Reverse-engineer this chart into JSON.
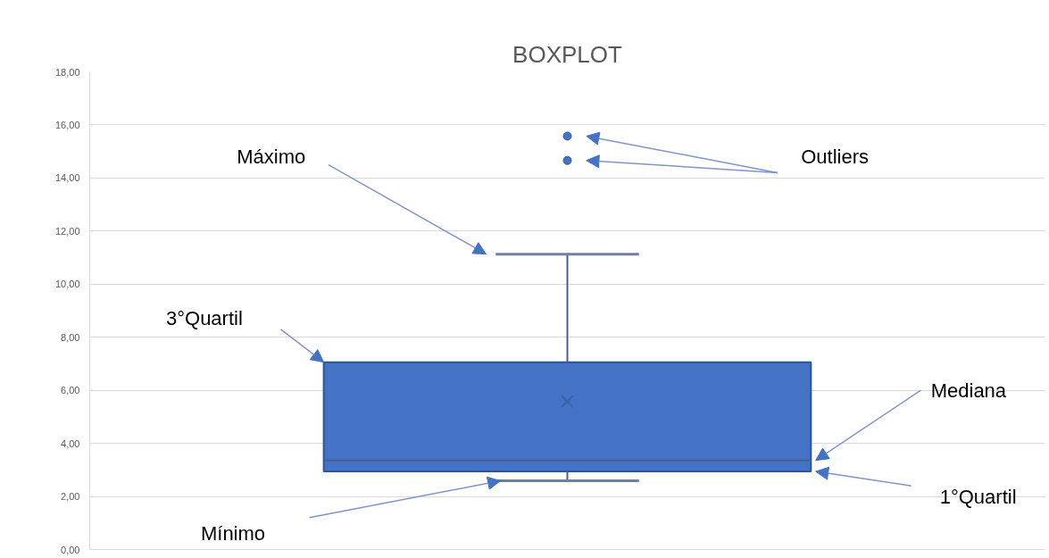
{
  "chart_data": {
    "type": "box",
    "title": "BOXPLOT",
    "categories": [
      null
    ],
    "boxes": [
      {
        "low": 2.59,
        "q1": 2.94,
        "median": 3.36,
        "q3": 7.06,
        "high": 11.13,
        "mean": 5.58,
        "outliers": [
          15.58,
          14.66
        ]
      }
    ],
    "color": "#4472c4",
    "ylim": [
      0,
      18
    ],
    "yticks": [
      {
        "value": 0,
        "label": "0,00"
      },
      {
        "value": 2,
        "label": "2,00"
      },
      {
        "value": 4,
        "label": "4,00"
      },
      {
        "value": 6,
        "label": "6,00"
      },
      {
        "value": 8,
        "label": "8,00"
      },
      {
        "value": 10,
        "label": "10,00"
      },
      {
        "value": 12,
        "label": "12,00"
      },
      {
        "value": 14,
        "label": "14,00"
      },
      {
        "value": 16,
        "label": "16,00"
      },
      {
        "value": 18,
        "label": "18,00"
      }
    ],
    "grid": "y",
    "tick_labels": "y",
    "annotations": [
      "Máximo",
      "Outliers",
      "3°Quartil",
      "Mediana",
      "1°Quartil",
      "Mínimo"
    ]
  }
}
